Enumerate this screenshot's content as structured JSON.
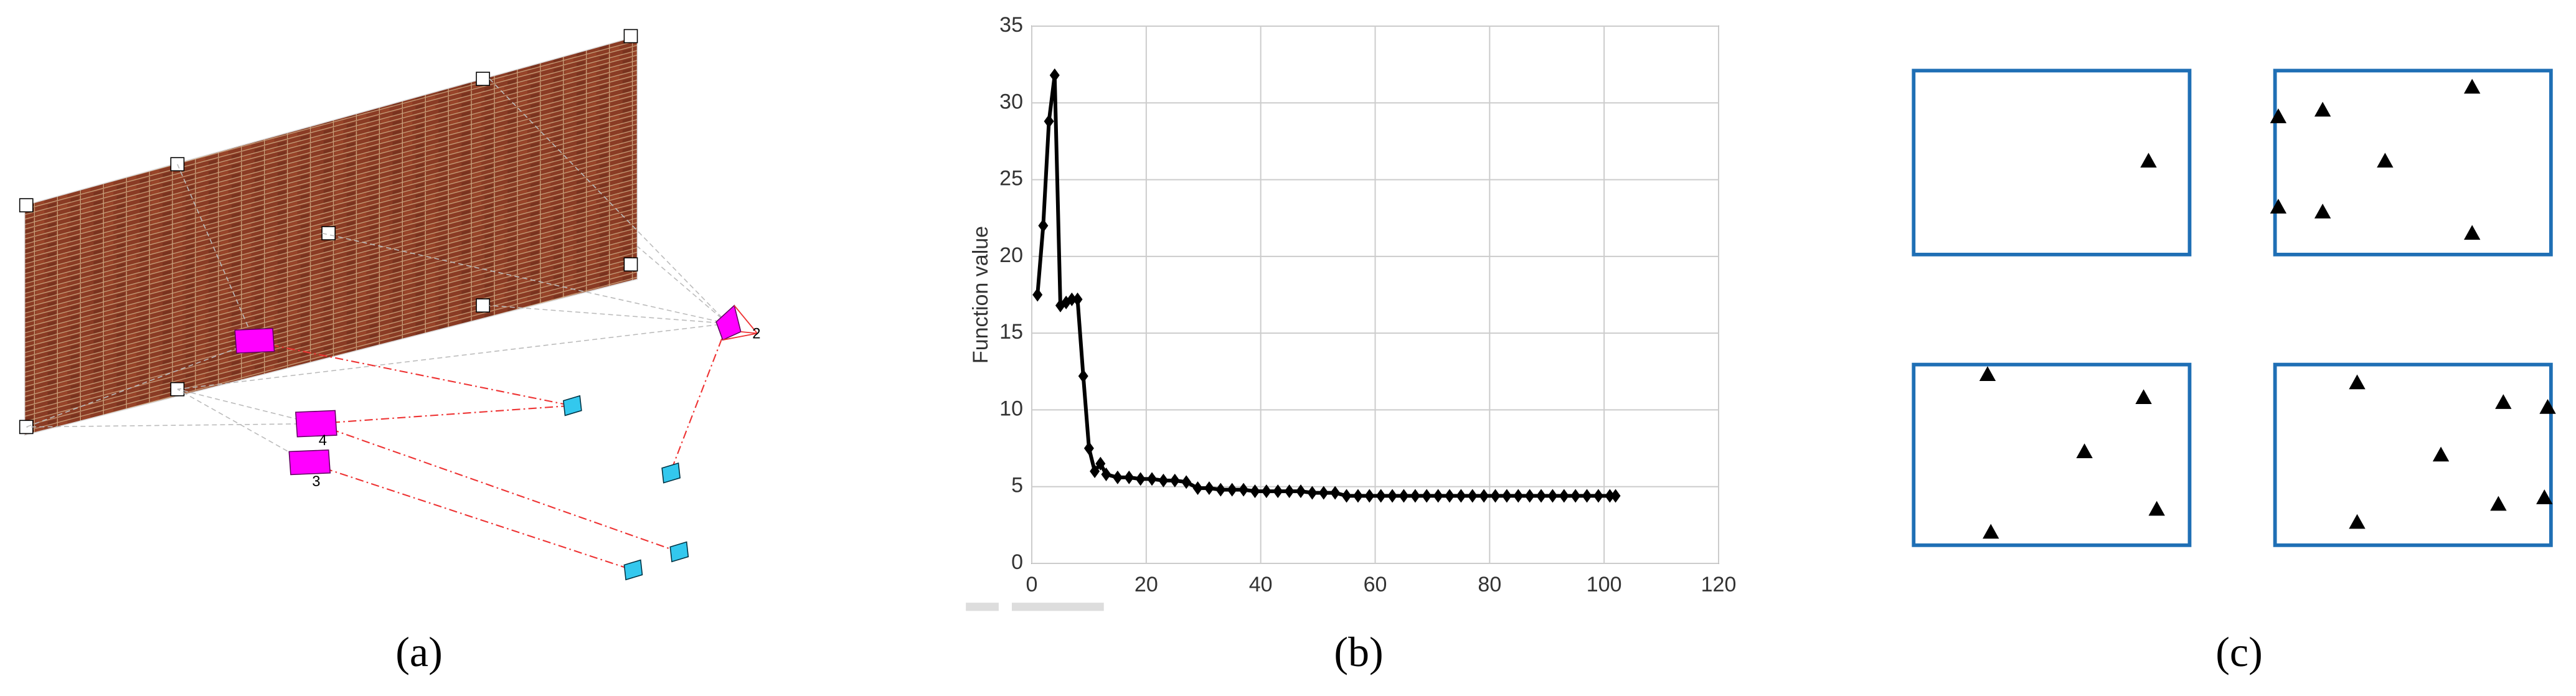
{
  "chart_data": {
    "type": "line",
    "y_label": "Function value",
    "x": [
      1,
      2,
      3,
      4,
      5,
      6,
      7,
      8,
      9,
      10,
      11,
      12,
      13,
      15,
      17,
      19,
      21,
      23,
      25,
      27,
      29,
      31,
      33,
      35,
      37,
      39,
      41,
      43,
      45,
      47,
      49,
      51,
      53,
      55,
      57,
      59,
      61,
      63,
      65,
      67,
      69,
      71,
      73,
      75,
      77,
      79,
      81,
      83,
      85,
      87,
      89,
      91,
      93,
      95,
      97,
      99,
      101,
      102
    ],
    "values": [
      17.5,
      22,
      28.8,
      31.8,
      16.8,
      17,
      17.2,
      17.2,
      12.2,
      7.5,
      6,
      6.5,
      5.8,
      5.6,
      5.6,
      5.5,
      5.5,
      5.4,
      5.4,
      5.3,
      4.9,
      4.9,
      4.8,
      4.8,
      4.8,
      4.7,
      4.7,
      4.7,
      4.7,
      4.7,
      4.6,
      4.6,
      4.6,
      4.4,
      4.4,
      4.4,
      4.4,
      4.4,
      4.4,
      4.4,
      4.4,
      4.4,
      4.4,
      4.4,
      4.4,
      4.4,
      4.4,
      4.4,
      4.4,
      4.4,
      4.4,
      4.4,
      4.4,
      4.4,
      4.4,
      4.4,
      4.4,
      4.4
    ],
    "color": "#000000",
    "xlim": [
      0,
      120
    ],
    "xticks": [
      0,
      20,
      40,
      60,
      80,
      100,
      120
    ],
    "ylim": [
      0,
      35
    ],
    "yticks": [
      0,
      5,
      10,
      15,
      20,
      25,
      30,
      35
    ],
    "grid": true
  },
  "panel_a": {
    "labels": [
      "2",
      "4",
      "3"
    ]
  },
  "captions": [
    "(a)",
    "(b)",
    "(c)"
  ]
}
